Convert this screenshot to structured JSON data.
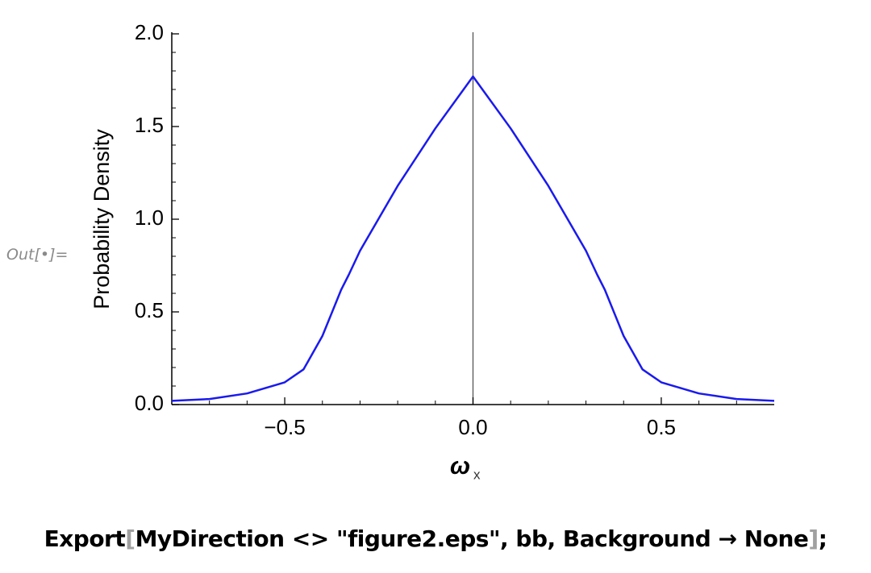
{
  "out_label": "Out[•]=",
  "chart_data": {
    "type": "line",
    "ylabel": "Probability Density",
    "xlabel": {
      "main": "ω",
      "subscript": "x"
    },
    "x": [
      -0.8,
      -0.7,
      -0.6,
      -0.5,
      -0.45,
      -0.4,
      -0.35,
      -0.33,
      -0.3,
      -0.2,
      -0.1,
      0,
      0.1,
      0.2,
      0.3,
      0.33,
      0.35,
      0.4,
      0.45,
      0.5,
      0.6,
      0.7,
      0.8
    ],
    "series": [
      {
        "color": "#1a1aee",
        "values": [
          0.02,
          0.03,
          0.06,
          0.12,
          0.19,
          0.37,
          0.62,
          0.7,
          0.83,
          1.18,
          1.49,
          1.77,
          1.49,
          1.18,
          0.83,
          0.7,
          0.62,
          0.37,
          0.19,
          0.12,
          0.06,
          0.03,
          0.02
        ]
      }
    ],
    "xlim": [
      -0.8,
      0.8
    ],
    "ylim": [
      0,
      2
    ],
    "xticks": [
      {
        "value": -0.5,
        "label": "−0.5"
      },
      {
        "value": 0,
        "label": "0.0"
      },
      {
        "value": 0.5,
        "label": "0.5"
      }
    ],
    "yticks": [
      {
        "value": 0,
        "label": "0.0"
      },
      {
        "value": 0.5,
        "label": "0.5"
      },
      {
        "value": 1,
        "label": "1.0"
      },
      {
        "value": 1.5,
        "label": "1.5"
      },
      {
        "value": 2,
        "label": "2.0"
      }
    ],
    "xminorticks": [
      -0.7,
      -0.6,
      -0.4,
      -0.3,
      -0.2,
      -0.1,
      0.1,
      0.2,
      0.3,
      0.4,
      0.6,
      0.7
    ],
    "yminorticks": [
      0.1,
      0.2,
      0.3,
      0.4,
      0.6,
      0.7,
      0.8,
      0.9,
      1.1,
      1.2,
      1.3,
      1.4,
      1.6,
      1.7,
      1.8,
      1.9
    ]
  },
  "code": {
    "parts": [
      "Export",
      "[",
      "MyDirection <> \"figure2.eps\", bb, Background → None",
      "]",
      ";"
    ]
  }
}
